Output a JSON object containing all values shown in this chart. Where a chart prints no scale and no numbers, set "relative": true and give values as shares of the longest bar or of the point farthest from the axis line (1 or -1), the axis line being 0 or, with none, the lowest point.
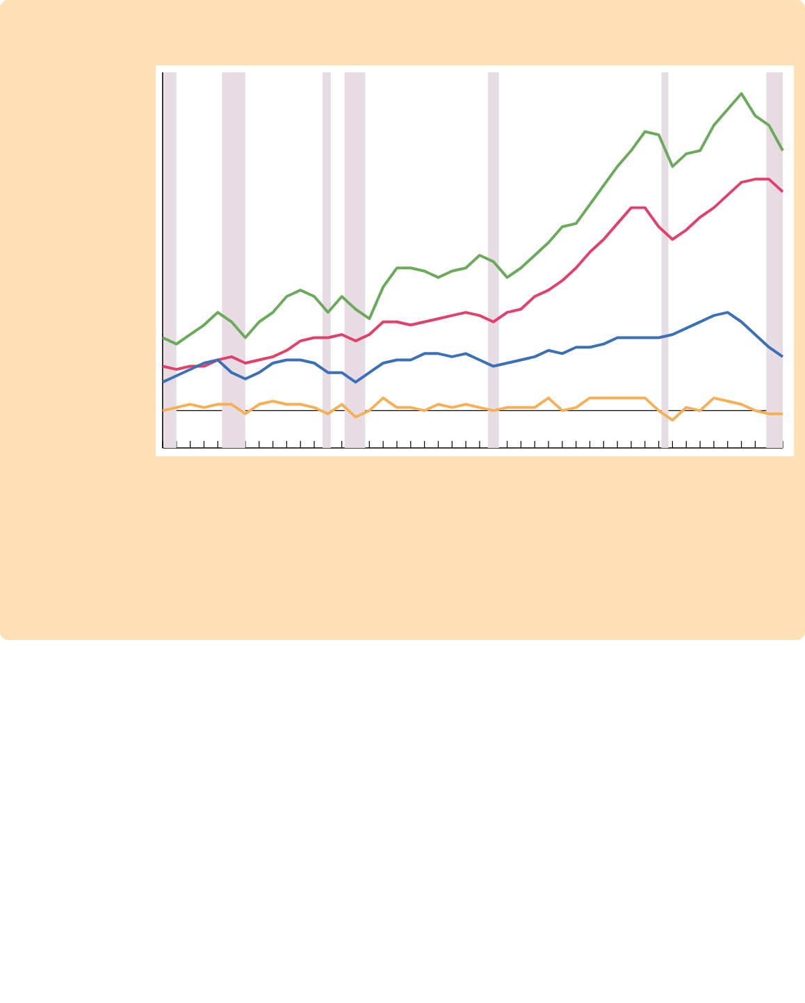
{
  "chart_data": {
    "type": "line",
    "relative": true,
    "line_style": "solid",
    "categories": [
      null,
      null,
      null,
      null,
      null,
      null,
      null,
      null,
      null,
      null,
      null,
      null,
      null,
      null,
      null,
      null,
      null,
      null,
      null,
      null,
      null,
      null,
      null,
      null,
      null,
      null,
      null,
      null,
      null,
      null,
      null,
      null,
      null,
      null,
      null,
      null,
      null,
      null,
      null,
      null,
      null,
      null,
      null,
      null,
      null,
      null
    ],
    "series": [
      {
        "color": "#6aaa5a",
        "values": [
          0.23,
          0.21,
          0.24,
          0.27,
          0.31,
          0.28,
          0.23,
          0.28,
          0.31,
          0.36,
          0.38,
          0.36,
          0.31,
          0.36,
          0.32,
          0.29,
          0.39,
          0.45,
          0.45,
          0.44,
          0.42,
          0.44,
          0.45,
          0.49,
          0.47,
          0.42,
          0.45,
          0.49,
          0.53,
          0.58,
          0.59,
          0.65,
          0.71,
          0.77,
          0.82,
          0.88,
          0.87,
          0.77,
          0.81,
          0.82,
          0.9,
          0.95,
          1.0,
          0.93,
          0.9,
          0.82
        ]
      },
      {
        "color": "#e0406a",
        "values": [
          0.14,
          0.13,
          0.14,
          0.14,
          0.16,
          0.17,
          0.15,
          0.16,
          0.17,
          0.19,
          0.22,
          0.23,
          0.23,
          0.24,
          0.22,
          0.24,
          0.28,
          0.28,
          0.27,
          0.28,
          0.29,
          0.3,
          0.31,
          0.3,
          0.28,
          0.31,
          0.32,
          0.36,
          0.38,
          0.41,
          0.45,
          0.5,
          0.54,
          0.59,
          0.64,
          0.64,
          0.58,
          0.54,
          0.57,
          0.61,
          0.64,
          0.68,
          0.72,
          0.73,
          0.73,
          0.69
        ]
      },
      {
        "color": "#3a70b8",
        "values": [
          0.09,
          0.11,
          0.13,
          0.15,
          0.16,
          0.12,
          0.1,
          0.12,
          0.15,
          0.16,
          0.16,
          0.15,
          0.12,
          0.12,
          0.09,
          0.12,
          0.15,
          0.16,
          0.16,
          0.18,
          0.18,
          0.17,
          0.18,
          0.16,
          0.14,
          0.15,
          0.16,
          0.17,
          0.19,
          0.18,
          0.2,
          0.2,
          0.21,
          0.23,
          0.23,
          0.23,
          0.23,
          0.24,
          0.26,
          0.28,
          0.3,
          0.31,
          0.28,
          0.24,
          0.2,
          0.17
        ]
      },
      {
        "color": "#f5b055",
        "values": [
          0.0,
          0.01,
          0.02,
          0.01,
          0.02,
          0.02,
          -0.01,
          0.02,
          0.03,
          0.02,
          0.02,
          0.01,
          -0.01,
          0.02,
          -0.02,
          0.0,
          0.04,
          0.01,
          0.01,
          0.0,
          0.02,
          0.01,
          0.02,
          0.01,
          0.0,
          0.01,
          0.01,
          0.01,
          0.04,
          0.0,
          0.01,
          0.04,
          0.04,
          0.04,
          0.04,
          0.04,
          0.0,
          -0.03,
          0.01,
          0.0,
          0.04,
          0.03,
          0.02,
          0.0,
          -0.01,
          -0.01
        ]
      }
    ]
  }
}
